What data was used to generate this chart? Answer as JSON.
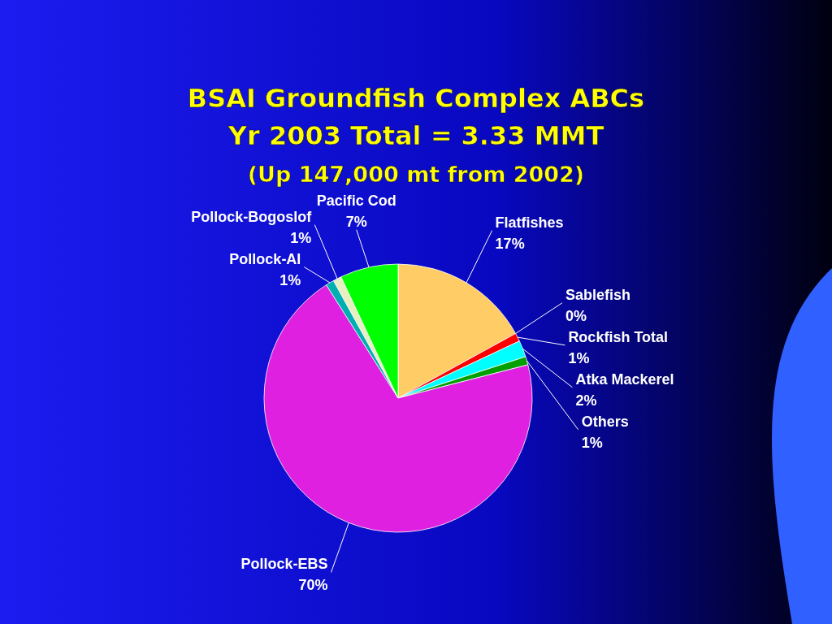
{
  "chart_data": {
    "type": "pie",
    "title": "BSAI Groundfish Complex ABCs",
    "subtitle": "Yr 2003 Total = 3.33 MMT\n(Up 147,000 mt from 2002)",
    "categories": [
      "Flatfishes",
      "Sablefish",
      "Rockfish Total",
      "Atka Mackerel",
      "Others",
      "Pollock-EBS",
      "Pollock-AI",
      "Pollock-Bogoslof",
      "Pacific Cod"
    ],
    "values": [
      17,
      0,
      1,
      2,
      1,
      70,
      1,
      1,
      7
    ],
    "colors": [
      "#ffcc66",
      null,
      "#ff0000",
      "#00ffff",
      "#00a000",
      "#e020e0",
      "#00b0b0",
      "#e8f0c0",
      "#00ff00"
    ],
    "value_labels": [
      "17%",
      "0%",
      "1%",
      "2%",
      "1%",
      "70%",
      "1%",
      "1%",
      "7%"
    ]
  }
}
